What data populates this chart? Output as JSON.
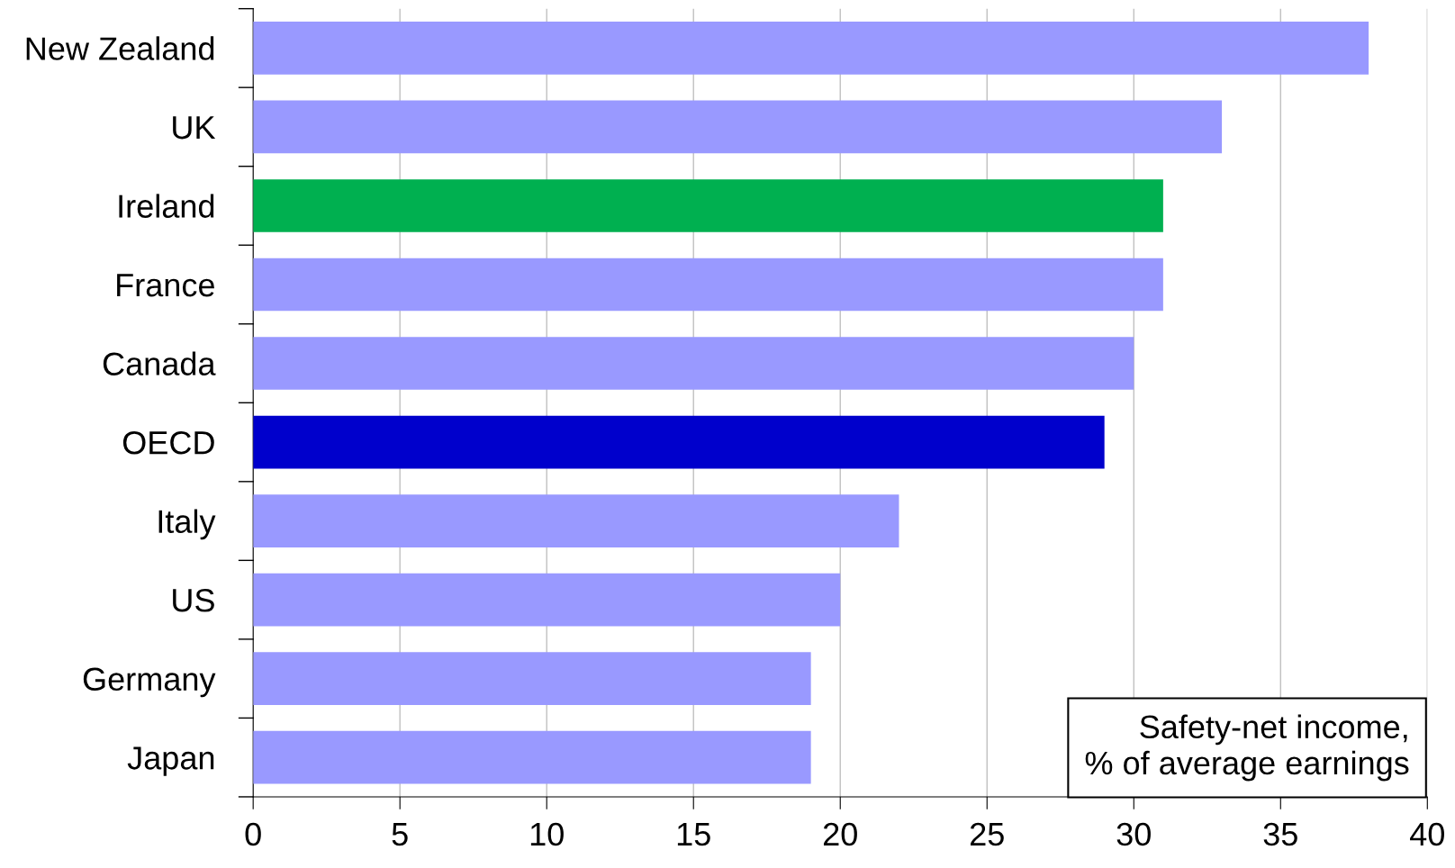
{
  "chart_data": {
    "type": "bar",
    "orientation": "horizontal",
    "categories": [
      "New Zealand",
      "UK",
      "Ireland",
      "France",
      "Canada",
      "OECD",
      "Italy",
      "US",
      "Germany",
      "Japan"
    ],
    "values": [
      38,
      33,
      31,
      31,
      30,
      29,
      22,
      20,
      19,
      19
    ],
    "colors": [
      "#9999ff",
      "#9999ff",
      "#00b050",
      "#9999ff",
      "#9999ff",
      "#0000cc",
      "#9999ff",
      "#9999ff",
      "#9999ff",
      "#9999ff"
    ],
    "xlim": [
      0,
      40
    ],
    "xticks": [
      0,
      5,
      10,
      15,
      20,
      25,
      30,
      35,
      40
    ],
    "grid": "x",
    "annotations": [
      "Safety-net income,\n% of average earnings"
    ]
  }
}
